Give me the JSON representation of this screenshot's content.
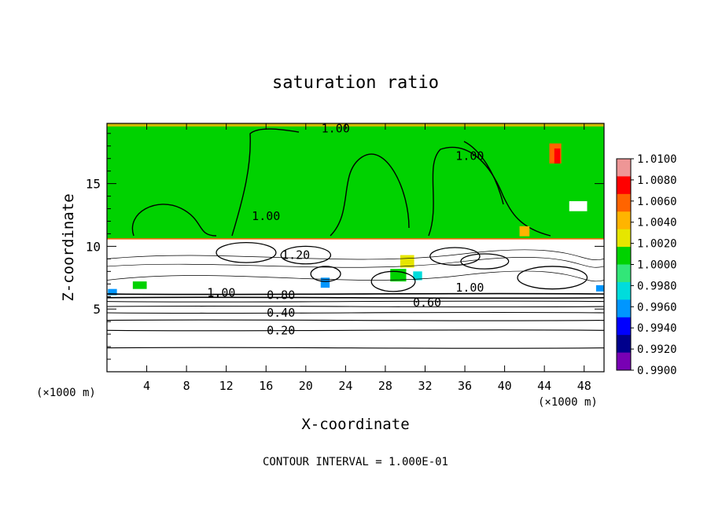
{
  "chart_data": {
    "type": "heatmap",
    "title": "saturation ratio",
    "xlabel": "X-coordinate",
    "ylabel": "Z-coordinate",
    "xunit": "(×1000 m)",
    "xunit_right": "(×1000 m)",
    "xlim": [
      0,
      50
    ],
    "ylim": [
      0,
      19.8
    ],
    "xticks": [
      4,
      8,
      12,
      16,
      20,
      24,
      28,
      32,
      36,
      40,
      44,
      48
    ],
    "yticks": [
      5,
      10,
      15
    ],
    "footer": "CONTOUR INTERVAL = 1.000E-01",
    "colorbar": {
      "levels": [
        "1.0100",
        "1.0080",
        "1.0060",
        "1.0040",
        "1.0020",
        "1.0000",
        "0.9980",
        "0.9960",
        "0.9940",
        "0.9920",
        "0.9900"
      ],
      "colors": [
        "#ee9696",
        "#ff0000",
        "#ff6400",
        "#ffb400",
        "#e6e600",
        "#00d200",
        "#32e678",
        "#00dcdc",
        "#0096ff",
        "#0000ff",
        "#00008c",
        "#7800b4"
      ]
    },
    "contour_labels": [
      {
        "text": "1.00",
        "x": 23,
        "z": 19.4
      },
      {
        "text": "1.00",
        "x": 36.5,
        "z": 17.2
      },
      {
        "text": "1.00",
        "x": 16,
        "z": 12.4
      },
      {
        "text": "1.20",
        "x": 19,
        "z": 9.3
      },
      {
        "text": "1.00",
        "x": 11.5,
        "z": 6.3
      },
      {
        "text": "0.80",
        "x": 17.5,
        "z": 6.1
      },
      {
        "text": "1.00",
        "x": 36.5,
        "z": 6.7
      },
      {
        "text": "0.60",
        "x": 32.2,
        "z": 5.5
      },
      {
        "text": "0.40",
        "x": 17.5,
        "z": 4.7
      },
      {
        "text": "0.20",
        "x": 17.5,
        "z": 3.3
      }
    ],
    "horizontal_contours_z": [
      1.9,
      3.3,
      4.1,
      4.7,
      5.2,
      5.6,
      5.9,
      6.2
    ],
    "green_region_bottom_z": 10.6
  }
}
